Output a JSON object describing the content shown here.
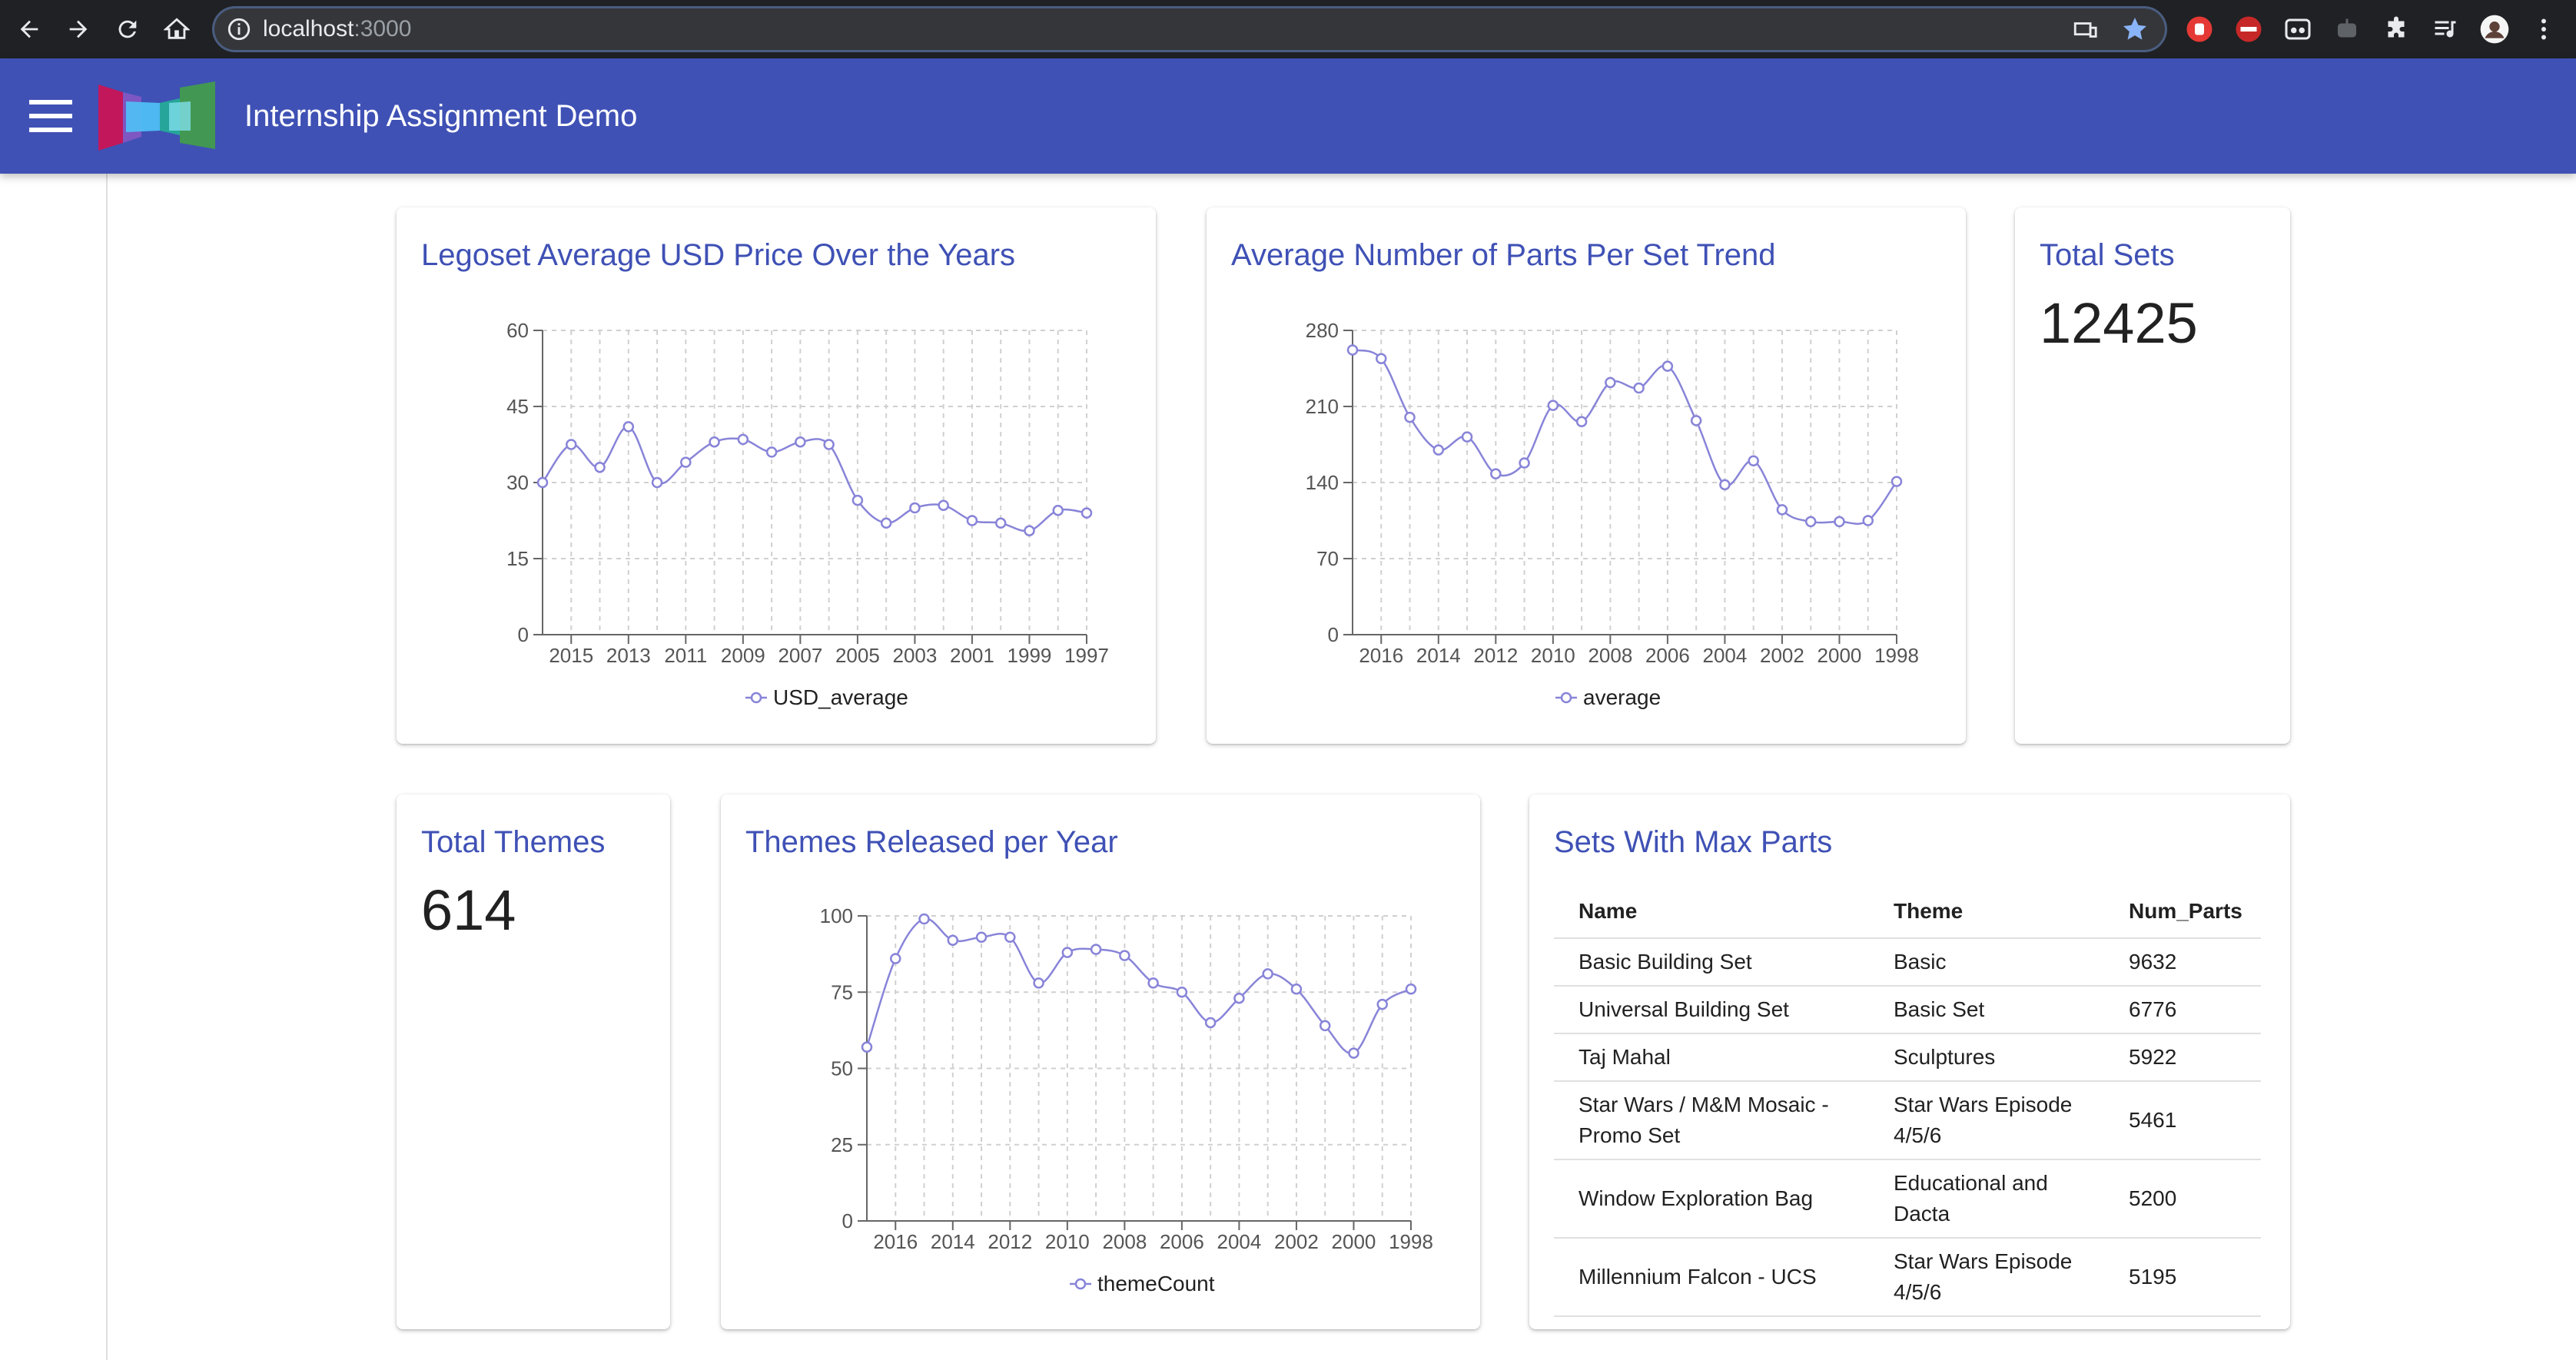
{
  "browser": {
    "url_host": "localhost",
    "url_port": ":3000"
  },
  "app": {
    "title": "Internship Assignment Demo"
  },
  "cards": {
    "total_sets": {
      "title": "Total Sets",
      "value": "12425"
    },
    "total_themes": {
      "title": "Total Themes",
      "value": "614"
    },
    "sets_max_parts": {
      "title": "Sets With Max Parts",
      "columns": [
        "Name",
        "Theme",
        "Num_Parts"
      ],
      "rows": [
        [
          "Basic Building Set",
          "Basic",
          "9632"
        ],
        [
          "Universal Building Set",
          "Basic Set",
          "6776"
        ],
        [
          "Taj Mahal",
          "Sculptures",
          "5922"
        ],
        [
          "Star Wars / M&M Mosaic - Promo Set",
          "Star Wars Episode 4/5/6",
          "5461"
        ],
        [
          "Window Exploration Bag",
          "Educational and Dacta",
          "5200"
        ],
        [
          "Millennium Falcon - UCS",
          "Star Wars Episode 4/5/6",
          "5195"
        ]
      ]
    }
  },
  "chart_data": [
    {
      "id": "usd",
      "type": "line",
      "title": "Legoset Average USD Price Over the Years",
      "series_name": "USD_average",
      "x": [
        "2016",
        "2015",
        "2014",
        "2013",
        "2012",
        "2011",
        "2010",
        "2009",
        "2008",
        "2007",
        "2006",
        "2005",
        "2004",
        "2003",
        "2002",
        "2001",
        "2000",
        "1999",
        "1998",
        "1997"
      ],
      "x_tick_labels": [
        "2015",
        "2013",
        "2011",
        "2009",
        "2007",
        "2005",
        "2003",
        "2001",
        "1999",
        "1997"
      ],
      "values": [
        30,
        37.5,
        33,
        41,
        30,
        34,
        38,
        38.5,
        36,
        38,
        37.5,
        26.5,
        22,
        25,
        25.5,
        22.5,
        22,
        20.5,
        24.5,
        24
      ],
      "ylim": [
        0,
        60
      ],
      "y_ticks": [
        "0",
        "15",
        "30",
        "45",
        "60"
      ],
      "color": "#8884d8"
    },
    {
      "id": "parts",
      "type": "line",
      "title": "Average Number of Parts Per Set Trend",
      "series_name": "average",
      "x": [
        "2017",
        "2016",
        "2015",
        "2014",
        "2013",
        "2012",
        "2011",
        "2010",
        "2009",
        "2008",
        "2007",
        "2006",
        "2005",
        "2004",
        "2003",
        "2002",
        "2001",
        "2000",
        "1999",
        "1998"
      ],
      "x_tick_labels": [
        "2016",
        "2014",
        "2012",
        "2010",
        "2008",
        "2006",
        "2004",
        "2002",
        "2000",
        "1998"
      ],
      "values": [
        262,
        254,
        200,
        170,
        182,
        148,
        158,
        211,
        196,
        232,
        227,
        247,
        197,
        138,
        160,
        115,
        104,
        104,
        105,
        141
      ],
      "ylim": [
        0,
        280
      ],
      "y_ticks": [
        "0",
        "70",
        "140",
        "210",
        "280"
      ],
      "color": "#8884d8"
    },
    {
      "id": "themes",
      "type": "line",
      "title": "Themes Released per Year",
      "series_name": "themeCount",
      "x": [
        "2017",
        "2016",
        "2015",
        "2014",
        "2013",
        "2012",
        "2011",
        "2010",
        "2009",
        "2008",
        "2007",
        "2006",
        "2005",
        "2004",
        "2003",
        "2002",
        "2001",
        "2000",
        "1999",
        "1998"
      ],
      "x_tick_labels": [
        "2016",
        "2014",
        "2012",
        "2010",
        "2008",
        "2006",
        "2004",
        "2002",
        "2000",
        "1998"
      ],
      "values": [
        57,
        86,
        99,
        92,
        93,
        93,
        78,
        88,
        89,
        87,
        78,
        75,
        65,
        73,
        81,
        76,
        64,
        55,
        71,
        76
      ],
      "ylim": [
        0,
        100
      ],
      "y_ticks": [
        "0",
        "25",
        "50",
        "75",
        "100"
      ],
      "color": "#8884d8"
    }
  ]
}
